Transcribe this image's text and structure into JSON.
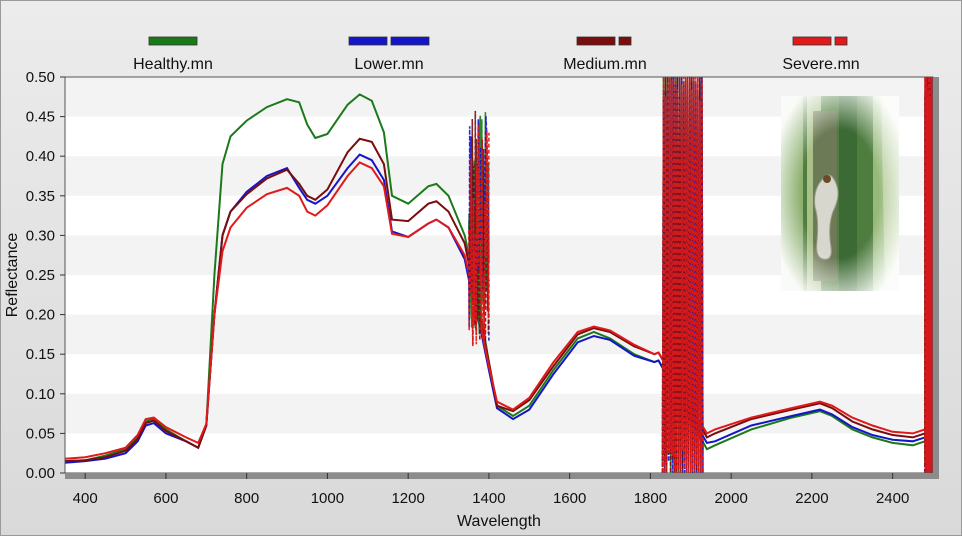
{
  "chart_data": {
    "type": "line",
    "xlabel": "Wavelength",
    "ylabel": "Reflectance",
    "xlim": [
      350,
      2500
    ],
    "ylim": [
      0,
      0.5
    ],
    "x_ticks": [
      400,
      600,
      800,
      1000,
      1200,
      1400,
      1600,
      1800,
      2000,
      2200,
      2400
    ],
    "y_ticks": [
      "0.00",
      "0.05",
      "0.10",
      "0.15",
      "0.20",
      "0.25",
      "0.30",
      "0.35",
      "0.40",
      "0.45",
      "0.50"
    ],
    "grid": "horizontal bands",
    "legend_position": "top",
    "noise_bands": [
      [
        1350,
        1400
      ],
      [
        1830,
        1930
      ],
      [
        2480,
        2500
      ]
    ],
    "series": [
      {
        "name": "Healthy.mn",
        "color": "#1a7a1a",
        "dash": "solid",
        "points": [
          [
            350,
            0.015
          ],
          [
            400,
            0.016
          ],
          [
            450,
            0.022
          ],
          [
            500,
            0.03
          ],
          [
            530,
            0.045
          ],
          [
            550,
            0.065
          ],
          [
            570,
            0.068
          ],
          [
            600,
            0.055
          ],
          [
            650,
            0.04
          ],
          [
            680,
            0.032
          ],
          [
            700,
            0.06
          ],
          [
            720,
            0.25
          ],
          [
            740,
            0.39
          ],
          [
            760,
            0.425
          ],
          [
            800,
            0.445
          ],
          [
            850,
            0.462
          ],
          [
            900,
            0.472
          ],
          [
            930,
            0.468
          ],
          [
            950,
            0.44
          ],
          [
            970,
            0.423
          ],
          [
            1000,
            0.428
          ],
          [
            1050,
            0.465
          ],
          [
            1080,
            0.478
          ],
          [
            1110,
            0.47
          ],
          [
            1140,
            0.43
          ],
          [
            1160,
            0.35
          ],
          [
            1200,
            0.34
          ],
          [
            1250,
            0.362
          ],
          [
            1270,
            0.365
          ],
          [
            1300,
            0.35
          ],
          [
            1340,
            0.3
          ],
          [
            1360,
            0.25
          ],
          [
            1380,
            0.2
          ],
          [
            1400,
            0.14
          ],
          [
            1420,
            0.085
          ],
          [
            1460,
            0.072
          ],
          [
            1500,
            0.085
          ],
          [
            1560,
            0.13
          ],
          [
            1620,
            0.17
          ],
          [
            1660,
            0.178
          ],
          [
            1700,
            0.17
          ],
          [
            1760,
            0.15
          ],
          [
            1810,
            0.14
          ],
          [
            1820,
            0.142
          ],
          [
            1940,
            0.03
          ],
          [
            1960,
            0.035
          ],
          [
            2050,
            0.055
          ],
          [
            2150,
            0.07
          ],
          [
            2220,
            0.078
          ],
          [
            2250,
            0.072
          ],
          [
            2300,
            0.055
          ],
          [
            2350,
            0.045
          ],
          [
            2400,
            0.038
          ],
          [
            2450,
            0.035
          ],
          [
            2480,
            0.04
          ]
        ]
      },
      {
        "name": "Lower.mn",
        "color": "#1515c8",
        "dash": "dashed",
        "points": [
          [
            350,
            0.013
          ],
          [
            400,
            0.015
          ],
          [
            450,
            0.018
          ],
          [
            500,
            0.025
          ],
          [
            530,
            0.04
          ],
          [
            550,
            0.06
          ],
          [
            570,
            0.063
          ],
          [
            600,
            0.05
          ],
          [
            650,
            0.04
          ],
          [
            680,
            0.032
          ],
          [
            700,
            0.06
          ],
          [
            720,
            0.2
          ],
          [
            740,
            0.3
          ],
          [
            760,
            0.33
          ],
          [
            800,
            0.355
          ],
          [
            850,
            0.375
          ],
          [
            900,
            0.385
          ],
          [
            930,
            0.36
          ],
          [
            950,
            0.345
          ],
          [
            970,
            0.34
          ],
          [
            1000,
            0.35
          ],
          [
            1050,
            0.385
          ],
          [
            1080,
            0.402
          ],
          [
            1110,
            0.395
          ],
          [
            1140,
            0.37
          ],
          [
            1160,
            0.305
          ],
          [
            1200,
            0.298
          ],
          [
            1250,
            0.315
          ],
          [
            1270,
            0.32
          ],
          [
            1300,
            0.31
          ],
          [
            1340,
            0.27
          ],
          [
            1360,
            0.22
          ],
          [
            1380,
            0.18
          ],
          [
            1400,
            0.13
          ],
          [
            1420,
            0.082
          ],
          [
            1460,
            0.068
          ],
          [
            1500,
            0.08
          ],
          [
            1560,
            0.125
          ],
          [
            1620,
            0.165
          ],
          [
            1660,
            0.173
          ],
          [
            1700,
            0.168
          ],
          [
            1760,
            0.148
          ],
          [
            1810,
            0.14
          ],
          [
            1820,
            0.142
          ],
          [
            1940,
            0.038
          ],
          [
            1960,
            0.04
          ],
          [
            2050,
            0.06
          ],
          [
            2150,
            0.072
          ],
          [
            2220,
            0.08
          ],
          [
            2250,
            0.074
          ],
          [
            2300,
            0.058
          ],
          [
            2350,
            0.048
          ],
          [
            2400,
            0.042
          ],
          [
            2450,
            0.04
          ],
          [
            2480,
            0.045
          ]
        ]
      },
      {
        "name": "Medium.mn",
        "color": "#7a0d0d",
        "dash": "dashed",
        "points": [
          [
            350,
            0.015
          ],
          [
            400,
            0.016
          ],
          [
            450,
            0.02
          ],
          [
            500,
            0.028
          ],
          [
            530,
            0.043
          ],
          [
            550,
            0.063
          ],
          [
            570,
            0.066
          ],
          [
            600,
            0.053
          ],
          [
            650,
            0.04
          ],
          [
            680,
            0.032
          ],
          [
            700,
            0.06
          ],
          [
            720,
            0.2
          ],
          [
            740,
            0.3
          ],
          [
            760,
            0.33
          ],
          [
            800,
            0.352
          ],
          [
            850,
            0.372
          ],
          [
            900,
            0.383
          ],
          [
            930,
            0.365
          ],
          [
            950,
            0.35
          ],
          [
            970,
            0.345
          ],
          [
            1000,
            0.358
          ],
          [
            1050,
            0.405
          ],
          [
            1080,
            0.422
          ],
          [
            1110,
            0.418
          ],
          [
            1140,
            0.39
          ],
          [
            1160,
            0.32
          ],
          [
            1200,
            0.318
          ],
          [
            1250,
            0.34
          ],
          [
            1270,
            0.343
          ],
          [
            1300,
            0.33
          ],
          [
            1340,
            0.29
          ],
          [
            1360,
            0.24
          ],
          [
            1380,
            0.19
          ],
          [
            1400,
            0.14
          ],
          [
            1420,
            0.085
          ],
          [
            1460,
            0.078
          ],
          [
            1500,
            0.092
          ],
          [
            1560,
            0.135
          ],
          [
            1620,
            0.175
          ],
          [
            1660,
            0.183
          ],
          [
            1700,
            0.178
          ],
          [
            1760,
            0.16
          ],
          [
            1810,
            0.15
          ],
          [
            1820,
            0.152
          ],
          [
            1940,
            0.045
          ],
          [
            1960,
            0.05
          ],
          [
            2050,
            0.068
          ],
          [
            2150,
            0.08
          ],
          [
            2220,
            0.088
          ],
          [
            2250,
            0.082
          ],
          [
            2300,
            0.065
          ],
          [
            2350,
            0.055
          ],
          [
            2400,
            0.048
          ],
          [
            2450,
            0.045
          ],
          [
            2480,
            0.05
          ]
        ]
      },
      {
        "name": "Severe.mn",
        "color": "#e01a1a",
        "dash": "dashed",
        "points": [
          [
            350,
            0.018
          ],
          [
            400,
            0.02
          ],
          [
            450,
            0.025
          ],
          [
            500,
            0.032
          ],
          [
            530,
            0.048
          ],
          [
            550,
            0.068
          ],
          [
            570,
            0.07
          ],
          [
            600,
            0.058
          ],
          [
            650,
            0.045
          ],
          [
            680,
            0.038
          ],
          [
            700,
            0.062
          ],
          [
            720,
            0.2
          ],
          [
            740,
            0.28
          ],
          [
            760,
            0.31
          ],
          [
            800,
            0.335
          ],
          [
            850,
            0.352
          ],
          [
            900,
            0.36
          ],
          [
            930,
            0.35
          ],
          [
            950,
            0.33
          ],
          [
            970,
            0.325
          ],
          [
            1000,
            0.338
          ],
          [
            1050,
            0.375
          ],
          [
            1080,
            0.392
          ],
          [
            1110,
            0.385
          ],
          [
            1140,
            0.362
          ],
          [
            1160,
            0.302
          ],
          [
            1200,
            0.298
          ],
          [
            1250,
            0.315
          ],
          [
            1270,
            0.32
          ],
          [
            1300,
            0.31
          ],
          [
            1340,
            0.275
          ],
          [
            1360,
            0.23
          ],
          [
            1380,
            0.185
          ],
          [
            1400,
            0.135
          ],
          [
            1420,
            0.09
          ],
          [
            1460,
            0.08
          ],
          [
            1500,
            0.095
          ],
          [
            1560,
            0.14
          ],
          [
            1620,
            0.178
          ],
          [
            1660,
            0.185
          ],
          [
            1700,
            0.18
          ],
          [
            1760,
            0.162
          ],
          [
            1810,
            0.15
          ],
          [
            1820,
            0.152
          ],
          [
            1940,
            0.05
          ],
          [
            1960,
            0.055
          ],
          [
            2050,
            0.07
          ],
          [
            2150,
            0.082
          ],
          [
            2220,
            0.09
          ],
          [
            2250,
            0.085
          ],
          [
            2300,
            0.07
          ],
          [
            2350,
            0.06
          ],
          [
            2400,
            0.052
          ],
          [
            2450,
            0.05
          ],
          [
            2480,
            0.055
          ]
        ]
      }
    ]
  },
  "inset_image": {
    "alt": "stem borer larva on rice stem",
    "icon": "larva-photo"
  }
}
